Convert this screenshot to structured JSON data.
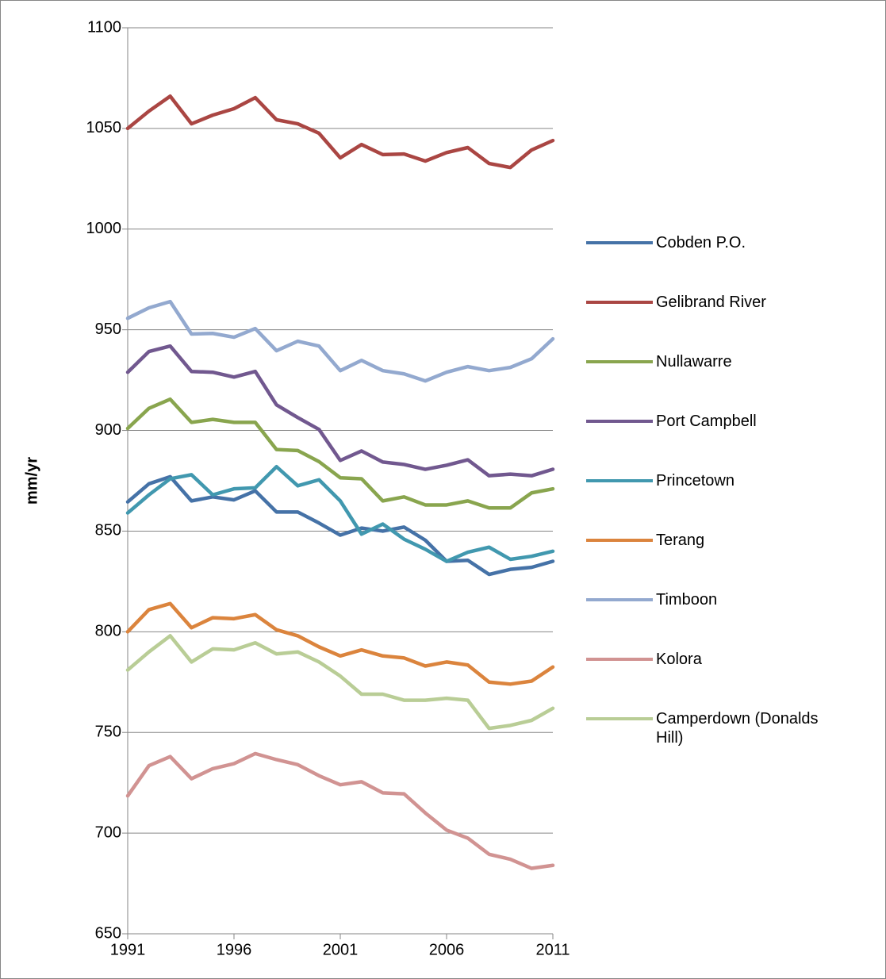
{
  "chart_data": {
    "type": "line",
    "y_label": "mm/yr",
    "x": [
      1991,
      1992,
      1993,
      1994,
      1995,
      1996,
      1997,
      1998,
      1999,
      2000,
      2001,
      2002,
      2003,
      2004,
      2005,
      2006,
      2007,
      2008,
      2009,
      2010,
      2011
    ],
    "xlim": [
      1991,
      2011
    ],
    "xticks": [
      1991,
      1996,
      2001,
      2006,
      2011
    ],
    "ylim": [
      650,
      1100
    ],
    "yticks": [
      650,
      700,
      750,
      800,
      850,
      900,
      950,
      1000,
      1050,
      1100
    ],
    "grid": true,
    "legend": "right",
    "series": [
      {
        "name": "Cobden P.O.",
        "color": "#4572a7",
        "values": [
          864.5,
          873.5,
          877,
          865,
          867,
          865.5,
          870,
          859.5,
          859.5,
          854,
          848,
          851.5,
          850,
          852,
          845.5,
          835,
          835.5,
          828.5,
          831,
          832,
          835
        ]
      },
      {
        "name": "Gelibrand River",
        "color": "#aa4643",
        "values": [
          1050,
          1058.6,
          1066,
          1052.3,
          1056.6,
          1059.8,
          1065.3,
          1054.3,
          1052.3,
          1047.6,
          1035.4,
          1042,
          1037,
          1037.3,
          1033.8,
          1038,
          1040.5,
          1032.6,
          1030.6,
          1039.3,
          1044
        ]
      },
      {
        "name": "Nullawarre",
        "color": "#89a54e",
        "values": [
          901,
          911,
          915.5,
          904,
          905.5,
          904,
          904,
          890.5,
          890,
          884.5,
          876.5,
          876,
          865,
          867,
          863,
          863,
          865,
          861.5,
          861.5,
          869,
          871
        ]
      },
      {
        "name": "Port Campbell",
        "color": "#71588f",
        "values": [
          928.9,
          939.2,
          941.9,
          929.3,
          928.9,
          926.5,
          929.3,
          912.7,
          906.4,
          900.5,
          885.1,
          889.8,
          884.3,
          883.1,
          880.7,
          882.7,
          885.4,
          877.5,
          878.3,
          877.5,
          880.7
        ]
      },
      {
        "name": "Princetown",
        "color": "#4198af",
        "values": [
          859,
          868,
          876,
          878,
          868,
          871,
          871.5,
          882,
          872.5,
          875.5,
          865,
          848.5,
          853.5,
          846,
          841,
          835,
          839.5,
          842,
          836,
          837.5,
          840
        ]
      },
      {
        "name": "Terang",
        "color": "#db843d",
        "values": [
          800,
          811,
          814,
          802,
          807,
          806.5,
          808.5,
          801,
          798,
          792.5,
          788,
          791,
          788,
          787,
          783,
          785,
          783.5,
          775,
          774,
          775.5,
          782.5
        ]
      },
      {
        "name": "Timboon",
        "color": "#93a9cf",
        "values": [
          955.7,
          960.9,
          964,
          947.9,
          948.2,
          946.3,
          950.6,
          939.6,
          944.3,
          941.9,
          929.7,
          934.8,
          929.7,
          928.1,
          924.6,
          928.9,
          931.7,
          929.7,
          931.3,
          935.6,
          945.5
        ]
      },
      {
        "name": "Kolora",
        "color": "#d19392",
        "values": [
          718.5,
          733.5,
          738,
          727,
          732,
          734.5,
          739.5,
          736.5,
          734,
          728.5,
          724,
          725.5,
          720,
          719.5,
          710,
          701.5,
          697.5,
          689.5,
          687,
          682.5,
          684
        ]
      },
      {
        "name": "Camperdown (Donalds Hill)",
        "color": "#b9cd96",
        "values": [
          781,
          790,
          798,
          785,
          791.5,
          791,
          794.5,
          789,
          790,
          785,
          778,
          769,
          769,
          766,
          766,
          767,
          766,
          752,
          753.5,
          756,
          762
        ]
      }
    ]
  }
}
